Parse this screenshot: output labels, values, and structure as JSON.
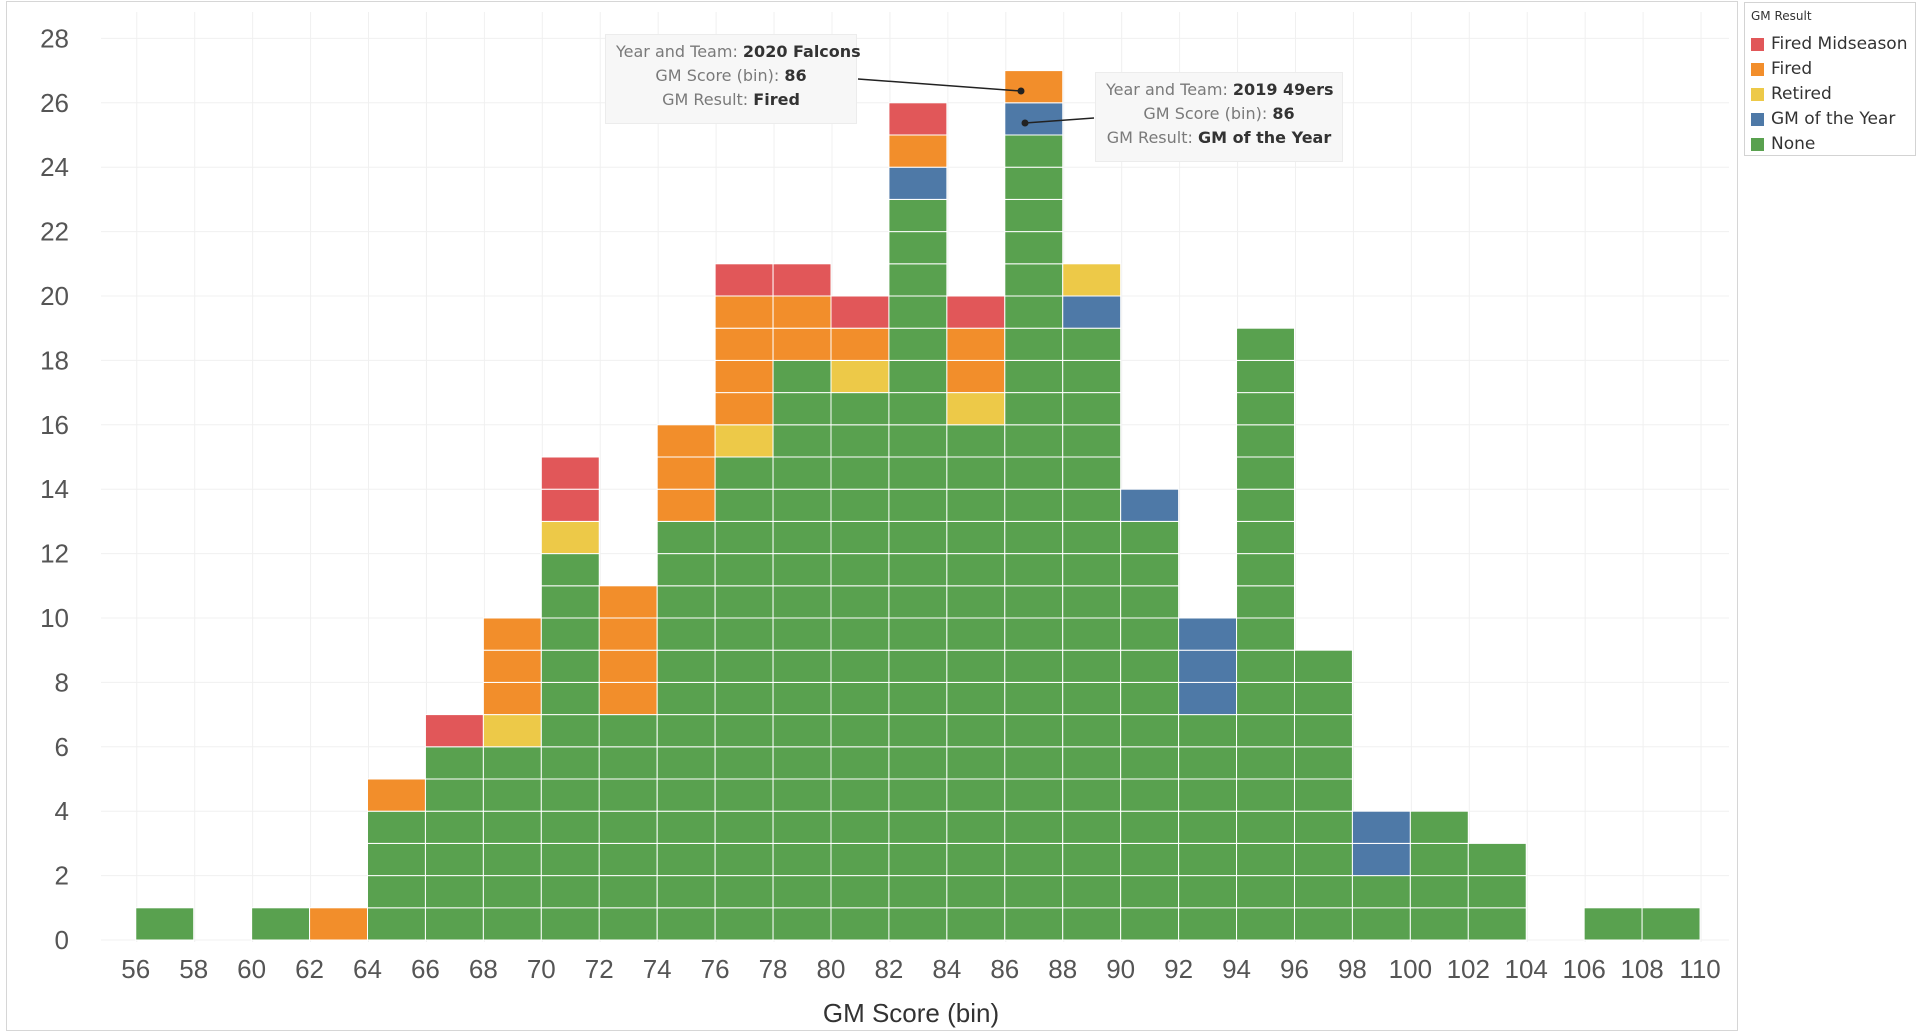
{
  "colors": {
    "fired_midseason": "#e15759",
    "fired": "#f28e2b",
    "retired": "#edc948",
    "gm_of_the_year": "#4e79a7",
    "none": "#59a14f"
  },
  "legend": {
    "title": "GM Result",
    "items": [
      {
        "label": "Fired Midseason",
        "color": "#e15759"
      },
      {
        "label": "Fired",
        "color": "#f28e2b"
      },
      {
        "label": "Retired",
        "color": "#edc948"
      },
      {
        "label": "GM of the Year",
        "color": "#4e79a7"
      },
      {
        "label": "None",
        "color": "#59a14f"
      }
    ]
  },
  "tooltips": [
    {
      "year_team_label": "Year and Team:",
      "year_team_value": "2020 Falcons",
      "score_label": "GM Score (bin):",
      "score_value": "86",
      "result_label": "GM Result:",
      "result_value": "Fired"
    },
    {
      "year_team_label": "Year and Team:",
      "year_team_value": "2019 49ers",
      "score_label": "GM Score (bin):",
      "score_value": "86",
      "result_label": "GM Result:",
      "result_value": "GM of the Year"
    }
  ],
  "chart_data": {
    "type": "bar",
    "stacked": true,
    "xlabel": "GM Score (bin)",
    "ylabel": "",
    "x_ticks": [
      56,
      58,
      60,
      62,
      64,
      66,
      68,
      70,
      72,
      74,
      76,
      78,
      80,
      82,
      84,
      86,
      88,
      90,
      92,
      94,
      96,
      98,
      100,
      102,
      104,
      106,
      108,
      110
    ],
    "y_ticks": [
      0,
      2,
      4,
      6,
      8,
      10,
      12,
      14,
      16,
      18,
      20,
      22,
      24,
      26,
      28
    ],
    "ylim": [
      0,
      28
    ],
    "grid": true,
    "legend_position": "top-right",
    "categories": [
      57,
      61,
      63,
      65,
      67,
      69,
      71,
      73,
      75,
      77,
      79,
      81,
      83,
      85,
      87,
      89,
      91,
      93,
      95,
      97,
      99,
      101,
      103,
      107,
      109
    ],
    "series": [
      {
        "name": "None",
        "values": [
          1,
          1,
          0,
          4,
          6,
          6,
          12,
          7,
          13,
          15,
          18,
          17,
          23,
          16,
          25,
          19,
          13,
          7,
          19,
          9,
          2,
          4,
          3,
          1,
          1
        ]
      },
      {
        "name": "GM of the Year",
        "values": [
          0,
          0,
          0,
          0,
          0,
          0,
          0,
          0,
          0,
          0,
          0,
          0,
          1,
          0,
          1,
          1,
          1,
          3,
          0,
          0,
          2,
          0,
          0,
          0,
          0
        ]
      },
      {
        "name": "Retired",
        "values": [
          0,
          0,
          0,
          0,
          0,
          1,
          1,
          0,
          0,
          1,
          0,
          1,
          0,
          1,
          0,
          1,
          0,
          0,
          0,
          0,
          0,
          0,
          0,
          0,
          0
        ]
      },
      {
        "name": "Fired",
        "values": [
          0,
          0,
          1,
          1,
          0,
          3,
          0,
          4,
          3,
          4,
          2,
          1,
          1,
          2,
          1,
          0,
          0,
          0,
          0,
          0,
          0,
          0,
          0,
          0,
          0
        ]
      },
      {
        "name": "Fired Midseason",
        "values": [
          0,
          0,
          0,
          0,
          1,
          0,
          2,
          0,
          0,
          1,
          1,
          1,
          1,
          1,
          0,
          0,
          0,
          0,
          0,
          0,
          0,
          0,
          0,
          0,
          0
        ]
      }
    ],
    "series_colors": [
      "#59a14f",
      "#4e79a7",
      "#edc948",
      "#f28e2b",
      "#e15759"
    ]
  }
}
